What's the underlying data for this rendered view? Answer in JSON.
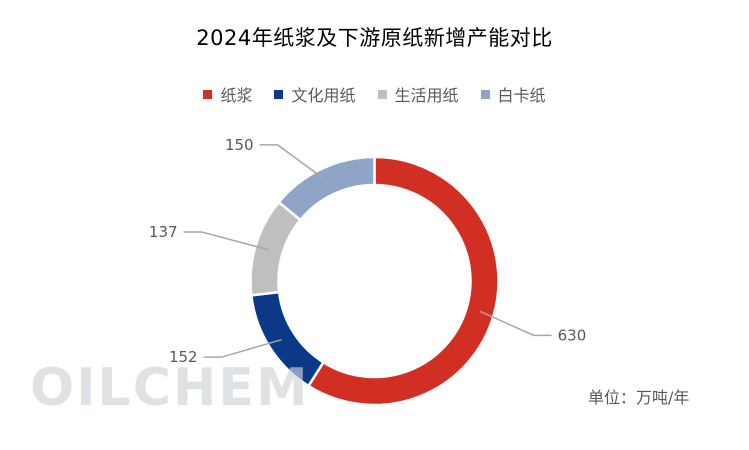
{
  "chart_data": {
    "type": "pie",
    "title": "2024年纸浆及下游原纸新增产能对比",
    "categories": [
      "纸浆",
      "文化用纸",
      "生活用纸",
      "白卡纸"
    ],
    "values": [
      630,
      152,
      137,
      150
    ],
    "colors": [
      "#d12e24",
      "#0a3a87",
      "#bfbfbf",
      "#8ea5c8"
    ],
    "unit_label": "单位：万吨/年",
    "watermark": "OILCHEM",
    "legend_position": "top"
  }
}
